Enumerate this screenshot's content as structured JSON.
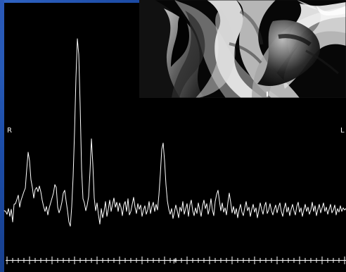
{
  "orientation": {
    "right_label": "R",
    "left_label": "L",
    "posterior_label": "P"
  },
  "colors": {
    "background": "#000000",
    "frame_blue": "#2455b2",
    "trace": "#ffffff",
    "axis": "#ffffff"
  },
  "spectrum_points": [
    [
      6,
      299
    ],
    [
      8,
      300
    ],
    [
      10,
      304
    ],
    [
      12,
      296
    ],
    [
      14,
      307
    ],
    [
      16,
      297
    ],
    [
      18,
      315
    ],
    [
      20,
      290
    ],
    [
      22,
      289
    ],
    [
      24,
      283
    ],
    [
      26,
      277
    ],
    [
      28,
      294
    ],
    [
      30,
      284
    ],
    [
      32,
      278
    ],
    [
      34,
      272
    ],
    [
      36,
      267
    ],
    [
      38,
      240
    ],
    [
      40,
      216
    ],
    [
      42,
      228
    ],
    [
      44,
      255
    ],
    [
      46,
      266
    ],
    [
      48,
      281
    ],
    [
      50,
      269
    ],
    [
      52,
      266
    ],
    [
      54,
      272
    ],
    [
      56,
      264
    ],
    [
      58,
      272
    ],
    [
      60,
      284
    ],
    [
      62,
      293
    ],
    [
      64,
      300
    ],
    [
      66,
      293
    ],
    [
      68,
      305
    ],
    [
      70,
      295
    ],
    [
      72,
      288
    ],
    [
      74,
      281
    ],
    [
      76,
      274
    ],
    [
      78,
      262
    ],
    [
      80,
      266
    ],
    [
      82,
      294
    ],
    [
      84,
      302
    ],
    [
      86,
      296
    ],
    [
      88,
      287
    ],
    [
      90,
      274
    ],
    [
      92,
      270
    ],
    [
      94,
      285
    ],
    [
      96,
      299
    ],
    [
      98,
      315
    ],
    [
      100,
      321
    ],
    [
      102,
      293
    ],
    [
      104,
      250
    ],
    [
      106,
      187
    ],
    [
      108,
      110
    ],
    [
      110,
      55
    ],
    [
      112,
      77
    ],
    [
      114,
      150
    ],
    [
      116,
      240
    ],
    [
      118,
      282
    ],
    [
      120,
      288
    ],
    [
      122,
      299
    ],
    [
      124,
      291
    ],
    [
      126,
      279
    ],
    [
      128,
      243
    ],
    [
      130,
      197
    ],
    [
      132,
      233
    ],
    [
      134,
      281
    ],
    [
      136,
      299
    ],
    [
      138,
      288
    ],
    [
      140,
      305
    ],
    [
      142,
      318
    ],
    [
      144,
      296
    ],
    [
      146,
      309
    ],
    [
      148,
      300
    ],
    [
      150,
      286
    ],
    [
      152,
      307
    ],
    [
      154,
      297
    ],
    [
      156,
      284
    ],
    [
      158,
      300
    ],
    [
      160,
      290
    ],
    [
      162,
      281
    ],
    [
      164,
      294
    ],
    [
      166,
      287
    ],
    [
      168,
      300
    ],
    [
      170,
      288
    ],
    [
      172,
      294
    ],
    [
      174,
      306
    ],
    [
      176,
      291
    ],
    [
      178,
      286
    ],
    [
      180,
      300
    ],
    [
      182,
      282
    ],
    [
      184,
      305
    ],
    [
      186,
      300
    ],
    [
      188,
      290
    ],
    [
      190,
      280
    ],
    [
      192,
      294
    ],
    [
      194,
      303
    ],
    [
      196,
      289
    ],
    [
      198,
      297
    ],
    [
      200,
      291
    ],
    [
      202,
      307
    ],
    [
      204,
      298
    ],
    [
      206,
      292
    ],
    [
      208,
      304
    ],
    [
      210,
      298
    ],
    [
      212,
      286
    ],
    [
      214,
      303
    ],
    [
      216,
      293
    ],
    [
      218,
      287
    ],
    [
      220,
      300
    ],
    [
      222,
      290
    ],
    [
      224,
      298
    ],
    [
      226,
      276
    ],
    [
      228,
      247
    ],
    [
      230,
      212
    ],
    [
      232,
      203
    ],
    [
      234,
      228
    ],
    [
      236,
      262
    ],
    [
      238,
      285
    ],
    [
      240,
      297
    ],
    [
      242,
      304
    ],
    [
      244,
      296
    ],
    [
      246,
      310
    ],
    [
      248,
      301
    ],
    [
      250,
      291
    ],
    [
      252,
      299
    ],
    [
      254,
      309
    ],
    [
      256,
      294
    ],
    [
      258,
      300
    ],
    [
      260,
      286
    ],
    [
      262,
      304
    ],
    [
      264,
      296
    ],
    [
      266,
      289
    ],
    [
      268,
      307
    ],
    [
      270,
      291
    ],
    [
      272,
      284
    ],
    [
      274,
      299
    ],
    [
      276,
      306
    ],
    [
      278,
      295
    ],
    [
      280,
      303
    ],
    [
      282,
      288
    ],
    [
      284,
      298
    ],
    [
      286,
      307
    ],
    [
      288,
      292
    ],
    [
      290,
      284
    ],
    [
      292,
      296
    ],
    [
      294,
      289
    ],
    [
      296,
      304
    ],
    [
      298,
      296
    ],
    [
      300,
      282
    ],
    [
      302,
      298
    ],
    [
      304,
      306
    ],
    [
      306,
      286
    ],
    [
      308,
      276
    ],
    [
      310,
      270
    ],
    [
      312,
      285
    ],
    [
      314,
      299
    ],
    [
      316,
      288
    ],
    [
      318,
      301
    ],
    [
      320,
      295
    ],
    [
      322,
      305
    ],
    [
      324,
      288
    ],
    [
      326,
      274
    ],
    [
      328,
      287
    ],
    [
      330,
      302
    ],
    [
      332,
      293
    ],
    [
      334,
      304
    ],
    [
      336,
      296
    ],
    [
      338,
      309
    ],
    [
      340,
      298
    ],
    [
      342,
      290
    ],
    [
      344,
      301
    ],
    [
      346,
      306
    ],
    [
      348,
      295
    ],
    [
      350,
      286
    ],
    [
      352,
      299
    ],
    [
      354,
      294
    ],
    [
      356,
      307
    ],
    [
      358,
      297
    ],
    [
      360,
      290
    ],
    [
      362,
      301
    ],
    [
      364,
      295
    ],
    [
      366,
      309
    ],
    [
      368,
      299
    ],
    [
      370,
      288
    ],
    [
      372,
      297
    ],
    [
      374,
      304
    ],
    [
      376,
      293
    ],
    [
      378,
      287
    ],
    [
      380,
      303
    ],
    [
      382,
      298
    ],
    [
      384,
      289
    ],
    [
      386,
      299
    ],
    [
      388,
      305
    ],
    [
      390,
      297
    ],
    [
      392,
      291
    ],
    [
      394,
      302
    ],
    [
      396,
      294
    ],
    [
      398,
      288
    ],
    [
      400,
      300
    ],
    [
      402,
      307
    ],
    [
      404,
      296
    ],
    [
      406,
      288
    ],
    [
      408,
      301
    ],
    [
      410,
      294
    ],
    [
      412,
      306
    ],
    [
      414,
      297
    ],
    [
      416,
      290
    ],
    [
      418,
      299
    ],
    [
      420,
      305
    ],
    [
      422,
      293
    ],
    [
      424,
      287
    ],
    [
      426,
      301
    ],
    [
      428,
      295
    ],
    [
      430,
      307
    ],
    [
      432,
      298
    ],
    [
      434,
      290
    ],
    [
      436,
      300
    ],
    [
      438,
      294
    ],
    [
      440,
      304
    ],
    [
      442,
      298
    ],
    [
      444,
      287
    ],
    [
      446,
      300
    ],
    [
      448,
      292
    ],
    [
      450,
      306
    ],
    [
      452,
      297
    ],
    [
      454,
      290
    ],
    [
      456,
      302
    ],
    [
      458,
      295
    ],
    [
      460,
      288
    ],
    [
      462,
      300
    ],
    [
      464,
      294
    ],
    [
      466,
      304
    ],
    [
      468,
      297
    ],
    [
      470,
      290
    ],
    [
      472,
      302
    ],
    [
      474,
      298
    ],
    [
      476,
      291
    ],
    [
      478,
      305
    ],
    [
      480,
      296
    ],
    [
      482,
      301
    ],
    [
      484,
      292
    ],
    [
      486,
      300
    ],
    [
      488,
      295
    ],
    [
      490,
      298
    ],
    [
      492,
      296
    ]
  ]
}
